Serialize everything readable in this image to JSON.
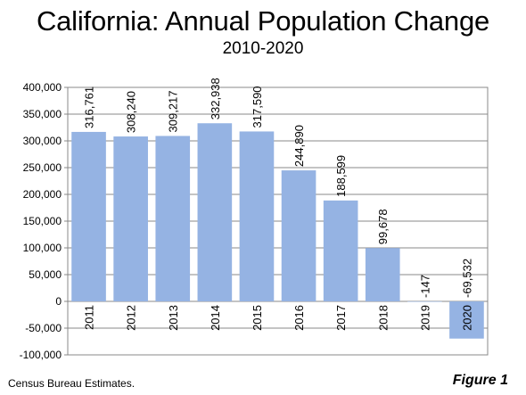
{
  "chart_data": {
    "type": "bar",
    "title": "California: Annual Population Change",
    "subtitle": "2010-2020",
    "categories": [
      "2011",
      "2012",
      "2013",
      "2014",
      "2015",
      "2016",
      "2017",
      "2018",
      "2019",
      "2020"
    ],
    "values": [
      316761,
      308240,
      309217,
      332938,
      317590,
      244890,
      188599,
      99678,
      -147,
      -69532
    ],
    "value_labels": [
      "316,761",
      "308,240",
      "309,217",
      "332,938",
      "317,590",
      "244,890",
      "188,599",
      "99,678",
      "-147",
      "-69,532"
    ],
    "ylim": [
      -100000,
      400000
    ],
    "yticks": [
      400000,
      350000,
      300000,
      250000,
      200000,
      150000,
      100000,
      50000,
      0,
      -50000,
      -100000
    ],
    "ytick_labels": [
      "400,000",
      "350,000",
      "300,000",
      "250,000",
      "200,000",
      "150,000",
      "100,000",
      "50,000",
      "0",
      "-50,000",
      "-100,000"
    ],
    "xlabel": "",
    "ylabel": "",
    "grid": true,
    "bar_color": "#95b3e3"
  },
  "footer": {
    "source": "Census Bureau Estimates.",
    "figure_label": "Figure 1"
  }
}
